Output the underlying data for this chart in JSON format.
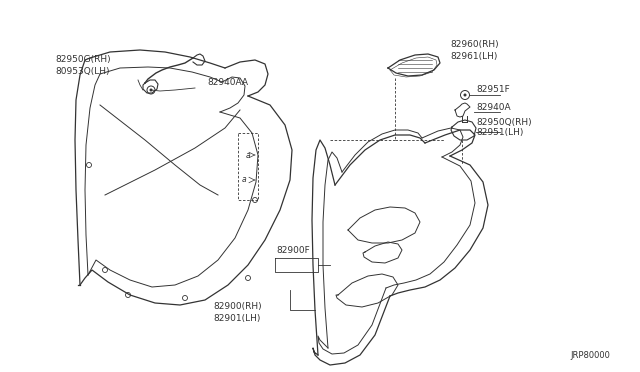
{
  "background_color": "#ffffff",
  "line_color": "#333333",
  "diagram_id": "JRP80000",
  "fig_width": 6.4,
  "fig_height": 3.72,
  "dpi": 100,
  "labels": {
    "82950G_RH": "82950G(RH)",
    "80953Q_LH": "80953Q(LH)",
    "82940AA": "82940AA",
    "82960_RH": "82960(RH)",
    "82961_LH": "82961(LH)",
    "82951F": "82951F",
    "82940A": "82940A",
    "82950Q_RH": "82950Q(RH)",
    "82951_LH": "82951(LH)",
    "82900F": "82900F",
    "82900_RH": "82900(RH)",
    "82901_LH": "82901(LH)"
  }
}
